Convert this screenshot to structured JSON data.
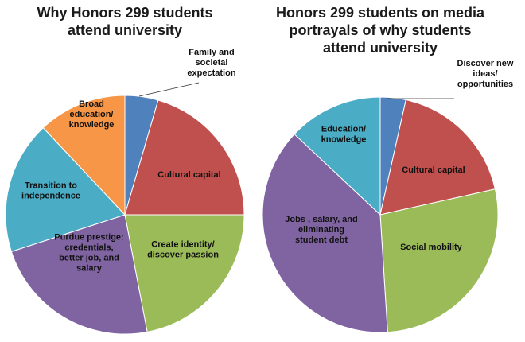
{
  "chart_data": [
    {
      "type": "pie",
      "title": "Why Honors 299 students attend university",
      "title_lines": [
        "Why Honors 299 students",
        "attend university"
      ],
      "slices": [
        {
          "label": "Family and societal expectation",
          "lines": [
            "Family and",
            "societal",
            "expectation"
          ],
          "value": 4.5,
          "color": "#4f81bd"
        },
        {
          "label": "Cultural capital",
          "lines": [
            "Cultural capital"
          ],
          "value": 20.5,
          "color": "#c0504d"
        },
        {
          "label": "Create identity/ discover passion",
          "lines": [
            "Create identity/",
            "discover passion"
          ],
          "value": 22,
          "color": "#9bbb59"
        },
        {
          "label": "Purdue prestige: credentials, better job, and salary",
          "lines": [
            "Purdue prestige:",
            "credentials,",
            "better job, and",
            "salary"
          ],
          "value": 23,
          "color": "#8064a2"
        },
        {
          "label": "Transition to independence",
          "lines": [
            "Transition to",
            "independence"
          ],
          "value": 18,
          "color": "#4bacc6"
        },
        {
          "label": "Broad education/ knowledge",
          "lines": [
            "Broad",
            "education/",
            "knowledge"
          ],
          "value": 12,
          "color": "#f79646"
        }
      ]
    },
    {
      "type": "pie",
      "title": "Honors 299 students on media portrayals of why students attend university",
      "title_lines": [
        "Honors 299 students on media",
        "portrayals of why students",
        "attend university"
      ],
      "slices": [
        {
          "label": "Discover new ideas/ opportunities",
          "lines": [
            "Discover new",
            "ideas/",
            "opportunities"
          ],
          "value": 3.5,
          "color": "#4f81bd"
        },
        {
          "label": "Cultural capital",
          "lines": [
            "Cultural capital"
          ],
          "value": 18,
          "color": "#c0504d"
        },
        {
          "label": "Social mobility",
          "lines": [
            "Social mobility"
          ],
          "value": 27.5,
          "color": "#9bbb59"
        },
        {
          "label": "Jobs , salary, and eliminating student debt",
          "lines": [
            "Jobs , salary, and",
            "eliminating",
            "student debt"
          ],
          "value": 38,
          "color": "#8064a2"
        },
        {
          "label": "Education/ knowledge",
          "lines": [
            "Education/",
            "knowledge"
          ],
          "value": 13,
          "color": "#4bacc6"
        }
      ]
    }
  ]
}
